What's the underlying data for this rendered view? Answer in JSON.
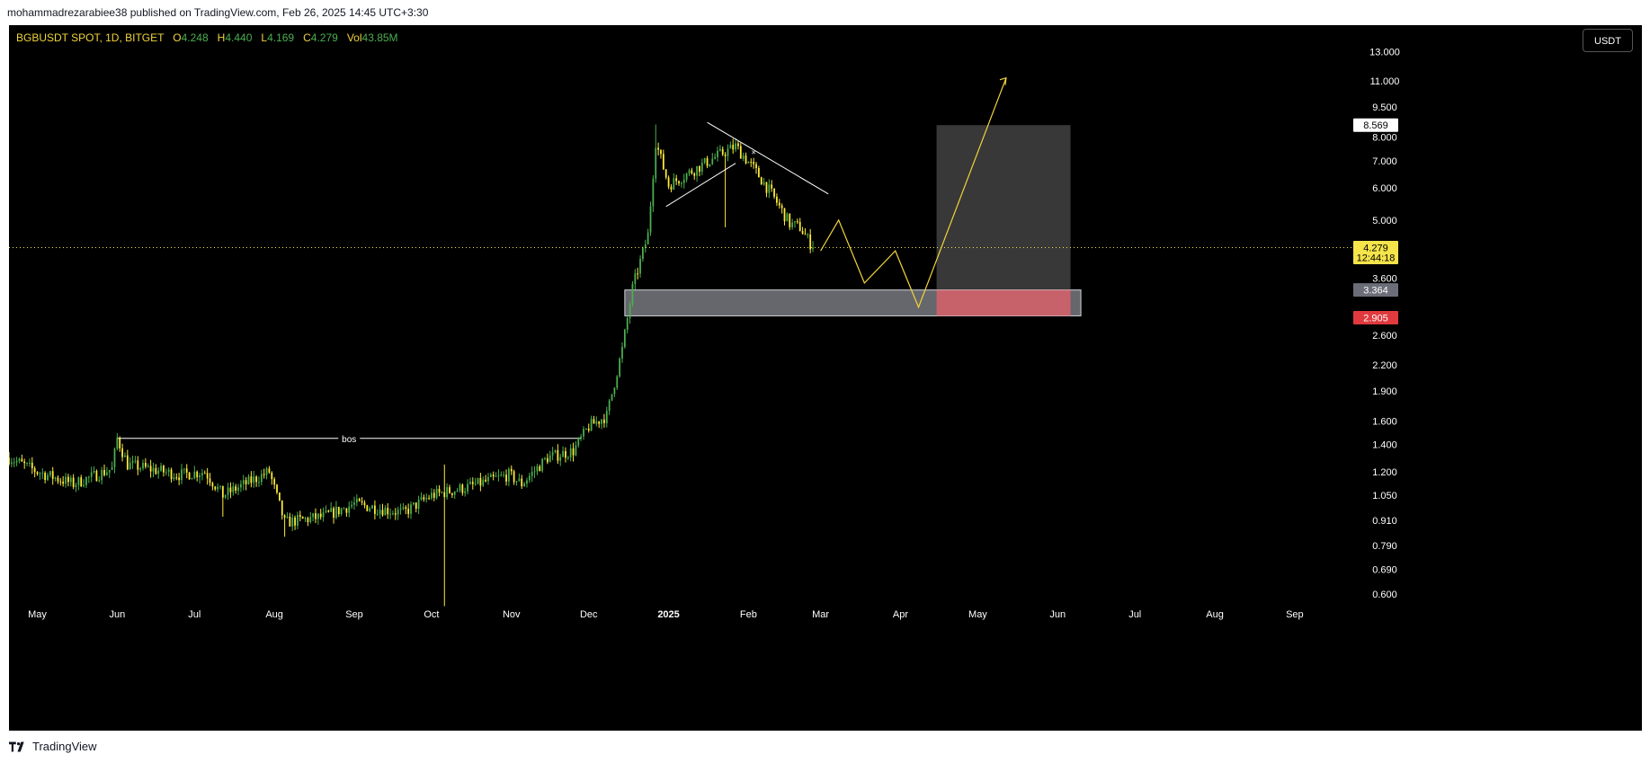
{
  "header": {
    "publisher_line": "mohammadrezarabiee38 published on TradingView.com, Feb 26, 2025 14:45 UTC+3:30"
  },
  "symbol_bar": {
    "symbol": "BGBUSDT SPOT, 1D, BITGET",
    "open_label": "O",
    "open": "4.248",
    "high_label": "H",
    "high": "4.440",
    "low_label": "L",
    "low": "4.169",
    "close_label": "C",
    "close": "4.279",
    "vol_label": "Vol",
    "volume": "43.85M"
  },
  "currency_button": "USDT",
  "footer": {
    "brand": "TradingView",
    "logo_icon": "tradingview-logo-icon"
  },
  "colors": {
    "background": "#000000",
    "candle_up": "#4caf50",
    "candle_down": "#ffeb3b",
    "projection_line": "#f0d43a",
    "last_price_tag": "#f5e44a",
    "stop_tag": "#e03a3e",
    "entry_tag": "#6b6e78",
    "target_tag": "#ffffff"
  },
  "chart_data": {
    "type": "candlestick",
    "scale": "log",
    "title": "BGBUSDT SPOT, 1D, BITGET",
    "grid": false,
    "x_tick_labels": [
      "May",
      "Jun",
      "Jul",
      "Aug",
      "Sep",
      "Oct",
      "Nov",
      "Dec",
      "2025",
      "Feb",
      "Mar",
      "Apr",
      "May",
      "Jun",
      "Jul",
      "Aug",
      "Sep"
    ],
    "y_tick_labels": [
      "13.000",
      "11.000",
      "9.500",
      "8.000",
      "7.000",
      "6.000",
      "5.000",
      "3.600",
      "2.600",
      "2.200",
      "1.900",
      "1.600",
      "1.400",
      "1.200",
      "1.050",
      "0.910",
      "0.790",
      "0.690",
      "0.600"
    ],
    "ylim": [
      0.55,
      14.5
    ],
    "approx_daily_closes": [
      {
        "date": "2024-04-20",
        "close": 1.3
      },
      {
        "date": "2024-05-01",
        "close": 1.2
      },
      {
        "date": "2024-05-15",
        "close": 1.12
      },
      {
        "date": "2024-05-30",
        "close": 1.22
      },
      {
        "date": "2024-06-01",
        "close": 1.45
      },
      {
        "date": "2024-06-05",
        "close": 1.25
      },
      {
        "date": "2024-06-25",
        "close": 1.18
      },
      {
        "date": "2024-07-05",
        "close": 1.2
      },
      {
        "date": "2024-07-12",
        "close": 1.05
      },
      {
        "date": "2024-07-30",
        "close": 1.2
      },
      {
        "date": "2024-08-05",
        "close": 0.9
      },
      {
        "date": "2024-08-20",
        "close": 0.93
      },
      {
        "date": "2024-09-01",
        "close": 1.0
      },
      {
        "date": "2024-09-20",
        "close": 0.95
      },
      {
        "date": "2024-10-01",
        "close": 1.05
      },
      {
        "date": "2024-10-15",
        "close": 1.1
      },
      {
        "date": "2024-10-31",
        "close": 1.18
      },
      {
        "date": "2024-11-05",
        "close": 1.12
      },
      {
        "date": "2024-11-15",
        "close": 1.3
      },
      {
        "date": "2024-11-25",
        "close": 1.35
      },
      {
        "date": "2024-12-01",
        "close": 1.55
      },
      {
        "date": "2024-12-08",
        "close": 1.65
      },
      {
        "date": "2024-12-14",
        "close": 2.4
      },
      {
        "date": "2024-12-18",
        "close": 3.4
      },
      {
        "date": "2024-12-24",
        "close": 4.6
      },
      {
        "date": "2024-12-27",
        "close": 7.8
      },
      {
        "date": "2025-01-01",
        "close": 6.1
      },
      {
        "date": "2025-01-10",
        "close": 6.6
      },
      {
        "date": "2025-01-20",
        "close": 7.2
      },
      {
        "date": "2025-01-27",
        "close": 7.6
      },
      {
        "date": "2025-02-03",
        "close": 6.7
      },
      {
        "date": "2025-02-10",
        "close": 5.8
      },
      {
        "date": "2025-02-17",
        "close": 4.9
      },
      {
        "date": "2025-02-21",
        "close": 4.8
      },
      {
        "date": "2025-02-26",
        "close": 4.279
      }
    ],
    "annotations": {
      "bos_label": "bos",
      "bos_level": 1.45,
      "demand_zone": {
        "top": 3.364,
        "bottom": 2.905
      },
      "last_price": "4.279",
      "countdown": "12:44:18",
      "target_price": "8.569",
      "entry_price": "3.364",
      "stop_price": "2.905",
      "projection_path": [
        {
          "date": "2025-03-01",
          "price": 4.2
        },
        {
          "date": "2025-03-08",
          "price": 5.0
        },
        {
          "date": "2025-03-18",
          "price": 3.5
        },
        {
          "date": "2025-03-30",
          "price": 4.2
        },
        {
          "date": "2025-04-08",
          "price": 3.05
        },
        {
          "date": "2025-05-12",
          "price": 11.2
        }
      ]
    }
  }
}
